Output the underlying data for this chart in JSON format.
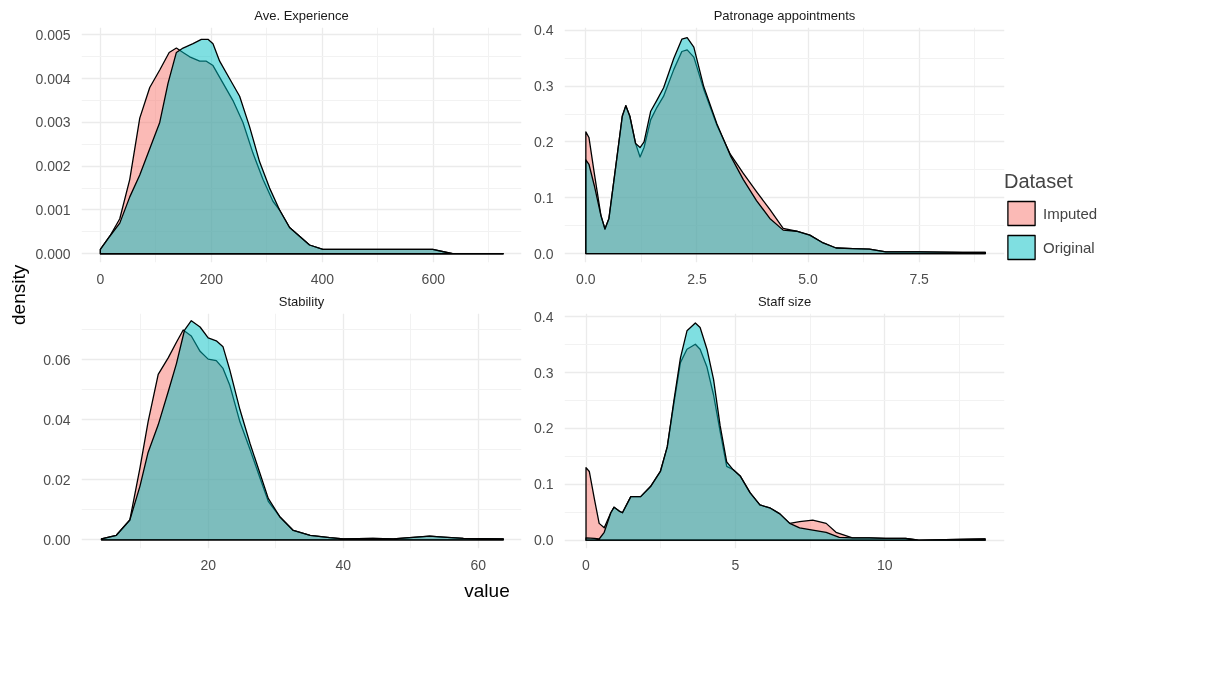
{
  "chart_data": [
    {
      "type": "area",
      "title": "Ave. Experience",
      "xlabel": "value",
      "ylabel": "density",
      "xlim": [
        -34,
        759
      ],
      "ylim": [
        -0.0002,
        0.00517
      ],
      "xticks": [
        0,
        200,
        400,
        600
      ],
      "yticks": [
        {
          "value": 0,
          "label": "0.000"
        },
        {
          "value": 0.001,
          "label": "0.001"
        },
        {
          "value": 0.002,
          "label": "0.002"
        },
        {
          "value": 0.003,
          "label": "0.003"
        },
        {
          "value": 0.004,
          "label": "0.004"
        },
        {
          "value": 0.005,
          "label": "0.005"
        }
      ],
      "grid": true,
      "series": [
        {
          "color": "#f8766d",
          "x": [
            0,
            17,
            35,
            53,
            71,
            89,
            107,
            124,
            137,
            149,
            161,
            179,
            191,
            203,
            221,
            239,
            257,
            275,
            293,
            311,
            323,
            341,
            359,
            377,
            401,
            437,
            467,
            527,
            599,
            635,
            726
          ],
          "values": [
            0.0001,
            0.0004,
            0.0008,
            0.0017,
            0.0031,
            0.0038,
            0.0042,
            0.0046,
            0.0047,
            0.0046,
            0.0045,
            0.0044,
            0.0044,
            0.0043,
            0.0039,
            0.0035,
            0.003,
            0.0023,
            0.0017,
            0.0012,
            0.001,
            0.0006,
            0.0004,
            0.0002,
            0.0001,
            0.0001,
            0.0001,
            0.0001,
            0.0001,
            0.0,
            0.0
          ]
        },
        {
          "color": "#00bfc4",
          "x": [
            0,
            17,
            35,
            53,
            71,
            89,
            107,
            122,
            137,
            149,
            167,
            182,
            194,
            203,
            215,
            233,
            251,
            269,
            287,
            305,
            323,
            341,
            359,
            377,
            401,
            437,
            467,
            527,
            599,
            635,
            726
          ],
          "values": [
            0.0001,
            0.0004,
            0.0007,
            0.0013,
            0.0018,
            0.0024,
            0.003,
            0.0039,
            0.0046,
            0.0047,
            0.0048,
            0.0049,
            0.0049,
            0.0048,
            0.0044,
            0.004,
            0.0036,
            0.0029,
            0.0021,
            0.0015,
            0.001,
            0.0006,
            0.0004,
            0.0002,
            0.0001,
            0.0001,
            0.0001,
            0.0001,
            0.0001,
            0.0,
            0.0
          ]
        }
      ]
    },
    {
      "type": "area",
      "title": "Patronage appointments",
      "legend": "right",
      "legend_title": "Dataset",
      "xlim": [
        -0.48,
        9.42
      ],
      "ylim": [
        -0.016,
        0.405
      ],
      "xticks": [
        {
          "value": 0,
          "label": "0.0"
        },
        {
          "value": 2.5,
          "label": "2.5"
        },
        {
          "value": 5,
          "label": "5.0"
        },
        {
          "value": 7.5,
          "label": "7.5"
        }
      ],
      "yticks": [
        {
          "value": 0,
          "label": "0.0"
        },
        0.1,
        0.2,
        0.3,
        0.4
      ],
      "grid": true,
      "series": [
        {
          "name": "Imputed",
          "color": "#f8766d",
          "x": [
            0,
            0.07,
            0.19,
            0.34,
            0.43,
            0.52,
            0.67,
            0.82,
            0.9,
            0.99,
            1.12,
            1.22,
            1.31,
            1.46,
            1.6,
            1.75,
            1.98,
            2.16,
            2.28,
            2.43,
            2.65,
            2.95,
            3.25,
            3.54,
            3.84,
            4.14,
            4.44,
            4.74,
            5.04,
            5.34,
            5.63,
            6.01,
            6.38,
            6.75,
            7.5,
            8.47,
            8.99
          ],
          "values": [
            0.218,
            0.208,
            0.144,
            0.068,
            0.044,
            0.063,
            0.154,
            0.246,
            0.265,
            0.246,
            0.197,
            0.173,
            0.19,
            0.24,
            0.262,
            0.282,
            0.33,
            0.362,
            0.365,
            0.352,
            0.295,
            0.23,
            0.178,
            0.144,
            0.111,
            0.079,
            0.045,
            0.04,
            0.033,
            0.019,
            0.01,
            0.009,
            0.008,
            0.003,
            0.003,
            0.002,
            0.002
          ]
        },
        {
          "name": "Original",
          "color": "#00bfc4",
          "x": [
            0,
            0.07,
            0.19,
            0.34,
            0.43,
            0.52,
            0.67,
            0.82,
            0.9,
            0.99,
            1.12,
            1.22,
            1.31,
            1.46,
            1.6,
            1.75,
            1.98,
            2.16,
            2.28,
            2.43,
            2.65,
            2.95,
            3.25,
            3.54,
            3.84,
            4.14,
            4.44,
            4.74,
            5.04,
            5.34,
            5.63,
            6.01,
            6.38,
            6.75,
            7.5,
            8.47,
            8.99
          ],
          "values": [
            0.168,
            0.16,
            0.122,
            0.068,
            0.044,
            0.063,
            0.154,
            0.246,
            0.265,
            0.246,
            0.197,
            0.19,
            0.2,
            0.255,
            0.275,
            0.297,
            0.35,
            0.384,
            0.387,
            0.37,
            0.3,
            0.232,
            0.176,
            0.133,
            0.095,
            0.063,
            0.042,
            0.04,
            0.033,
            0.019,
            0.01,
            0.009,
            0.008,
            0.003,
            0.003,
            0.002,
            0.002
          ]
        }
      ]
    },
    {
      "type": "area",
      "title": "Stability",
      "xlim": [
        1.24,
        66.4
      ],
      "ylim": [
        -0.0029,
        0.0754
      ],
      "xticks": [
        20,
        40,
        60
      ],
      "yticks": [
        {
          "value": 0,
          "label": "0.00"
        },
        {
          "value": 0.02,
          "label": "0.02"
        },
        {
          "value": 0.04,
          "label": "0.04"
        },
        {
          "value": 0.06,
          "label": "0.06"
        }
      ],
      "grid": true,
      "series": [
        {
          "color": "#f8766d",
          "x": [
            4.2,
            6.4,
            8.4,
            9.9,
            11.1,
            12.6,
            14.1,
            15.3,
            16.3,
            17.5,
            18.8,
            20,
            21.2,
            22.2,
            23.2,
            24.7,
            26.2,
            27.7,
            28.9,
            30.6,
            32.6,
            35.1,
            38,
            40,
            44.4,
            47.4,
            52.8,
            54.8,
            57.8,
            63.7
          ],
          "values": [
            0.0003,
            0.0015,
            0.0066,
            0.024,
            0.0393,
            0.0551,
            0.0607,
            0.0658,
            0.0699,
            0.0679,
            0.0628,
            0.0602,
            0.0597,
            0.0571,
            0.0515,
            0.0393,
            0.0301,
            0.0204,
            0.0128,
            0.0077,
            0.0031,
            0.0015,
            0.0007,
            0.0003,
            0.0005,
            0.0003,
            0.0012,
            0.0009,
            0.0005,
            0.0003
          ]
        },
        {
          "color": "#00bfc4",
          "x": [
            4.2,
            6.4,
            8.4,
            9.9,
            11.1,
            12.6,
            14.1,
            15.3,
            16.5,
            17.5,
            18.8,
            20,
            21.2,
            22.2,
            23.2,
            24.7,
            26.2,
            27.7,
            28.9,
            30.6,
            32.6,
            35.1,
            38,
            40,
            44.4,
            47.4,
            52.8,
            54.8,
            57.8,
            63.7
          ],
          "values": [
            0.0003,
            0.0015,
            0.0066,
            0.0179,
            0.0291,
            0.0383,
            0.0495,
            0.0587,
            0.0699,
            0.073,
            0.0709,
            0.0673,
            0.0663,
            0.0643,
            0.0566,
            0.0434,
            0.0321,
            0.0219,
            0.0138,
            0.0077,
            0.0031,
            0.0015,
            0.0007,
            0.0003,
            0.0005,
            0.0003,
            0.0012,
            0.0009,
            0.0005,
            0.0003
          ]
        }
      ]
    },
    {
      "type": "area",
      "title": "Staff size",
      "xlim": [
        -0.72,
        14.01
      ],
      "ylim": [
        -0.015,
        0.406
      ],
      "xticks": [
        0,
        5,
        10
      ],
      "yticks": [
        {
          "value": 0,
          "label": "0.0"
        },
        0.1,
        0.2,
        0.3,
        0.4
      ],
      "grid": true,
      "series": [
        {
          "color": "#f8766d",
          "x": [
            0,
            0.11,
            0.28,
            0.44,
            0.61,
            0.83,
            0.94,
            1.11,
            1.22,
            1.5,
            1.83,
            2.16,
            2.49,
            2.72,
            2.94,
            3.16,
            3.38,
            3.66,
            3.82,
            4.05,
            4.27,
            4.49,
            4.71,
            4.93,
            5.16,
            5.49,
            5.82,
            6.15,
            6.49,
            6.82,
            7.15,
            7.59,
            8.04,
            8.37,
            8.92,
            9.48,
            10.03,
            10.7,
            11.14,
            13.36
          ],
          "values": [
            0.13,
            0.123,
            0.074,
            0.03,
            0.022,
            0.049,
            0.059,
            0.052,
            0.049,
            0.078,
            0.078,
            0.096,
            0.123,
            0.167,
            0.244,
            0.318,
            0.342,
            0.351,
            0.342,
            0.31,
            0.26,
            0.195,
            0.132,
            0.126,
            0.115,
            0.085,
            0.063,
            0.058,
            0.047,
            0.03,
            0.033,
            0.036,
            0.03,
            0.014,
            0.004,
            0.004,
            0.003,
            0.003,
            0.0,
            0.002
          ]
        },
        {
          "color": "#00bfc4",
          "x": [
            0,
            0.28,
            0.44,
            0.61,
            0.83,
            0.94,
            1.11,
            1.22,
            1.5,
            1.83,
            2.16,
            2.49,
            2.72,
            2.94,
            3.16,
            3.38,
            3.66,
            3.82,
            4.05,
            4.27,
            4.49,
            4.71,
            4.93,
            5.16,
            5.49,
            5.82,
            6.15,
            6.49,
            6.82,
            7.15,
            7.59,
            8.04,
            8.48,
            8.92,
            9.48,
            10.03,
            10.7,
            11.14,
            13.36
          ],
          "values": [
            0.004,
            0.003,
            0.002,
            0.014,
            0.049,
            0.059,
            0.052,
            0.049,
            0.078,
            0.078,
            0.096,
            0.123,
            0.167,
            0.249,
            0.326,
            0.375,
            0.389,
            0.381,
            0.342,
            0.288,
            0.205,
            0.14,
            0.126,
            0.115,
            0.085,
            0.063,
            0.058,
            0.047,
            0.03,
            0.022,
            0.018,
            0.014,
            0.005,
            0.004,
            0.004,
            0.003,
            0.003,
            0.0,
            0.002
          ]
        }
      ]
    }
  ]
}
